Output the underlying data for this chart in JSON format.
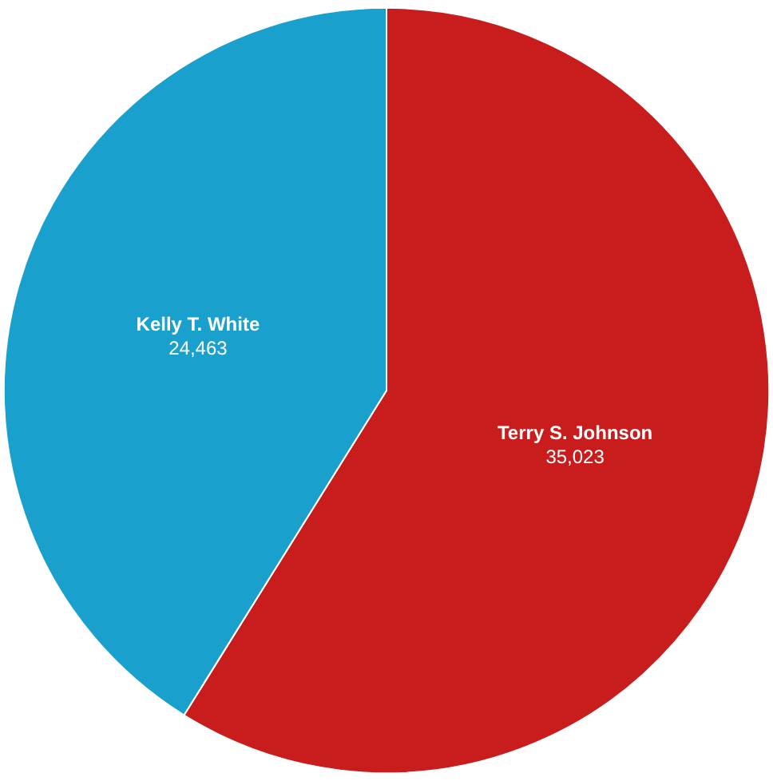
{
  "chart_data": {
    "type": "pie",
    "categories": [
      "Terry S. Johnson",
      "Kelly T. White"
    ],
    "values": [
      35023,
      24463
    ],
    "value_labels": [
      "35,023",
      "24,463"
    ],
    "colors": [
      "#c91d1d",
      "#1aa0cd"
    ],
    "legend": false
  }
}
